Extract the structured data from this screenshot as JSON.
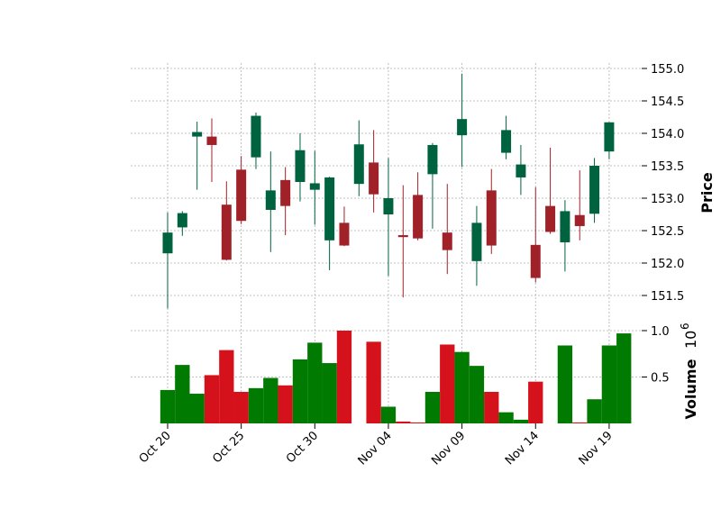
{
  "chart_data": {
    "type": "candlestick",
    "title": "",
    "colors": {
      "up": "#006340",
      "down": "#A02128",
      "vol_up": "#007A00",
      "vol_down": "#D5121B",
      "grid": "#b0b0b0"
    },
    "price_axis": {
      "ylabel": "Price",
      "ylim": [
        151.15,
        155.15
      ],
      "ticks": [
        "151.5",
        "152.0",
        "152.5",
        "153.0",
        "153.5",
        "154.0",
        "154.5",
        "155.0"
      ]
    },
    "volume_axis": {
      "ylabel": "Volume",
      "multiplier": "10",
      "multiplier_exp": "6",
      "ylim": [
        0,
        1.0
      ],
      "ticks": [
        "0.5",
        "1.0"
      ]
    },
    "x_ticks": [
      {
        "label": "Oct 20",
        "index": 0
      },
      {
        "label": "Oct 25",
        "index": 5
      },
      {
        "label": "Oct 30",
        "index": 10
      },
      {
        "label": "Nov 04",
        "index": 15
      },
      {
        "label": "Nov 09",
        "index": 20
      },
      {
        "label": "Nov 14",
        "index": 25
      },
      {
        "label": "Nov 19",
        "index": 30
      }
    ],
    "candles": [
      {
        "o": 152.15,
        "h": 152.78,
        "l": 151.3,
        "c": 152.47,
        "v": 0.36
      },
      {
        "o": 152.55,
        "h": 152.8,
        "l": 152.42,
        "c": 152.77,
        "v": 0.63
      },
      {
        "o": 153.95,
        "h": 154.18,
        "l": 153.13,
        "c": 154.02,
        "v": 0.32
      },
      {
        "o": 153.95,
        "h": 154.23,
        "l": 153.25,
        "c": 153.82,
        "v": 0.52
      },
      {
        "o": 152.9,
        "h": 153.26,
        "l": 152.04,
        "c": 152.05,
        "v": 0.79
      },
      {
        "o": 153.44,
        "h": 153.65,
        "l": 152.6,
        "c": 152.65,
        "v": 0.34
      },
      {
        "o": 153.63,
        "h": 154.32,
        "l": 153.45,
        "c": 154.27,
        "v": 0.38
      },
      {
        "o": 152.82,
        "h": 153.72,
        "l": 152.17,
        "c": 153.12,
        "v": 0.49
      },
      {
        "o": 153.28,
        "h": 153.48,
        "l": 152.43,
        "c": 152.88,
        "v": 0.41
      },
      {
        "o": 153.25,
        "h": 154.0,
        "l": 152.95,
        "c": 153.74,
        "v": 0.69
      },
      {
        "o": 153.13,
        "h": 153.73,
        "l": 152.59,
        "c": 153.23,
        "v": 0.87
      },
      {
        "o": 152.35,
        "h": 153.33,
        "l": 151.89,
        "c": 153.32,
        "v": 0.65
      },
      {
        "o": 152.62,
        "h": 152.87,
        "l": 152.26,
        "c": 152.27,
        "v": 1.0
      },
      {
        "o": 153.22,
        "h": 154.2,
        "l": 153.03,
        "c": 153.83,
        "v": 0.0
      },
      {
        "o": 153.55,
        "h": 154.05,
        "l": 152.78,
        "c": 153.06,
        "v": 0.88
      },
      {
        "o": 152.75,
        "h": 153.62,
        "l": 151.8,
        "c": 153.0,
        "v": 0.18
      },
      {
        "o": 152.43,
        "h": 153.2,
        "l": 151.47,
        "c": 152.4,
        "v": 0.02
      },
      {
        "o": 153.05,
        "h": 153.4,
        "l": 152.35,
        "c": 152.38,
        "v": 0.01
      },
      {
        "o": 153.37,
        "h": 153.85,
        "l": 152.53,
        "c": 153.82,
        "v": 0.34
      },
      {
        "o": 152.47,
        "h": 153.22,
        "l": 151.83,
        "c": 152.2,
        "v": 0.85
      },
      {
        "o": 153.97,
        "h": 154.92,
        "l": 153.48,
        "c": 154.22,
        "v": 0.77
      },
      {
        "o": 152.03,
        "h": 152.88,
        "l": 151.65,
        "c": 152.62,
        "v": 0.62
      },
      {
        "o": 153.12,
        "h": 153.45,
        "l": 152.14,
        "c": 152.27,
        "v": 0.34
      },
      {
        "o": 153.7,
        "h": 154.27,
        "l": 153.6,
        "c": 154.05,
        "v": 0.12
      },
      {
        "o": 153.32,
        "h": 153.82,
        "l": 153.05,
        "c": 153.52,
        "v": 0.04
      },
      {
        "o": 152.28,
        "h": 153.17,
        "l": 151.7,
        "c": 151.77,
        "v": 0.45
      },
      {
        "o": 152.88,
        "h": 153.78,
        "l": 152.45,
        "c": 152.48,
        "v": 0.0
      },
      {
        "o": 152.32,
        "h": 152.97,
        "l": 151.87,
        "c": 152.8,
        "v": 0.84
      },
      {
        "o": 152.74,
        "h": 153.43,
        "l": 152.35,
        "c": 152.57,
        "v": 0.01
      },
      {
        "o": 152.76,
        "h": 153.62,
        "l": 152.62,
        "c": 153.5,
        "v": 0.26
      },
      {
        "o": 153.72,
        "h": 154.17,
        "l": 153.6,
        "c": 154.17,
        "v": 0.84
      },
      {
        "o": 0,
        "h": 0,
        "l": 0,
        "c": 0,
        "v": 0.97,
        "volume_only": true,
        "up": true
      }
    ]
  }
}
